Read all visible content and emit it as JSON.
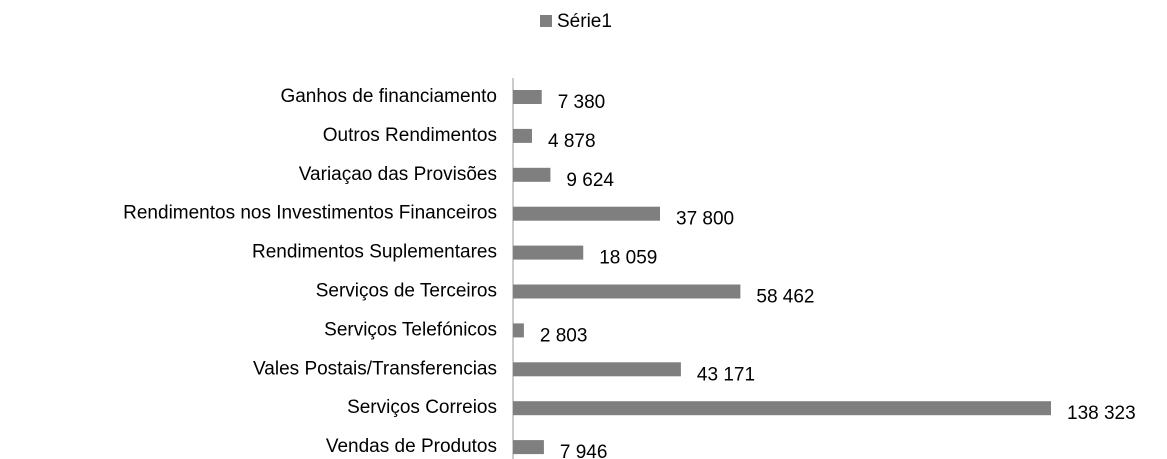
{
  "chart_data": {
    "type": "hbar",
    "categories": [
      "Ganhos de financiamento",
      "Outros Rendimentos",
      "Variaçao das Provisões",
      "Rendimentos nos Investimentos Financeiros",
      "Rendimentos Suplementares",
      "Serviços de Terceiros",
      "Serviços Telefónicos",
      "Vales Postais/Transferencias",
      "Serviços Correios",
      "Vendas de Produtos"
    ],
    "series": [
      {
        "name": "Série1",
        "color": "#7f7f7f",
        "values": [
          7380,
          4878,
          9624,
          37800,
          18059,
          58462,
          2803,
          43171,
          138323,
          7946
        ],
        "value_labels": [
          "7 380",
          "4 878",
          "9 624",
          "37 800",
          "18 059",
          "58 462",
          "2 803",
          "43 171",
          "138 323",
          "7 946"
        ]
      }
    ],
    "legend": "top"
  }
}
